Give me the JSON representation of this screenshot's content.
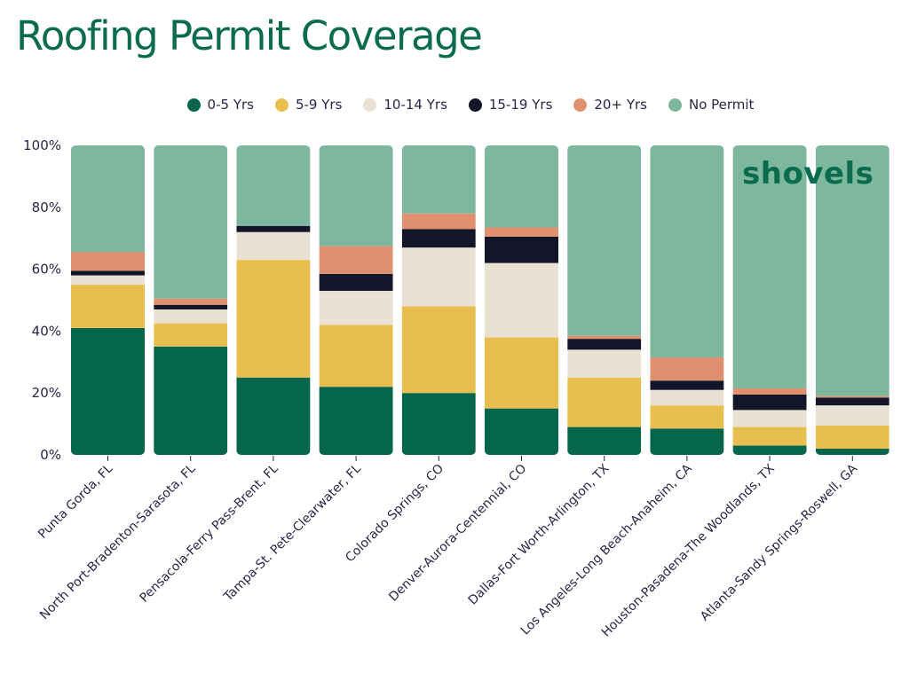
{
  "chart_data": {
    "type": "bar",
    "stacked": true,
    "title": "Roofing Permit Coverage",
    "xlabel": "",
    "ylabel": "",
    "ylim": [
      0,
      100
    ],
    "y_ticks": [
      "0%",
      "20%",
      "40%",
      "60%",
      "80%",
      "100%"
    ],
    "legend_position": "top",
    "categories": [
      "Punta Gorda, FL",
      "North Port-Bradenton-Sarasota, FL",
      "Pensacola-Ferry Pass-Brent, FL",
      "Tampa-St. Pete-Clearwater, FL",
      "Colorado Springs, CO",
      "Denver-Aurora-Centennial, CO",
      "Dallas-Fort Worth-Arlington, TX",
      "Los Angeles-Long Beach-Anaheim, CA",
      "Houston-Pasadena-The Woodlands, TX",
      "Atlanta-Sandy Springs-Roswell, GA"
    ],
    "series": [
      {
        "name": "0-5 Yrs",
        "color": "#05664b",
        "values": [
          41,
          35,
          25,
          22,
          20,
          15,
          9,
          8.5,
          3,
          2
        ]
      },
      {
        "name": "5-9 Yrs",
        "color": "#e8bf4f",
        "values": [
          14,
          7.5,
          38,
          20,
          28,
          23,
          16,
          7.5,
          6,
          7.5
        ]
      },
      {
        "name": "10-14 Yrs",
        "color": "#e9e2d3",
        "values": [
          3,
          4.5,
          9,
          11,
          19,
          24,
          9,
          5,
          5.5,
          6.5
        ]
      },
      {
        "name": "15-19 Yrs",
        "color": "#131629",
        "values": [
          1.5,
          1.5,
          2,
          5.5,
          6,
          8.5,
          3.5,
          3,
          5,
          2.5
        ]
      },
      {
        "name": "20+ Yrs",
        "color": "#e0906e",
        "values": [
          6,
          2,
          0,
          9,
          5,
          3,
          1,
          7.5,
          2,
          0.5
        ]
      },
      {
        "name": "No Permit",
        "color": "#7db89e",
        "values": [
          34.5,
          49.5,
          26,
          32.5,
          22,
          26.5,
          61.5,
          68.5,
          78.5,
          81
        ]
      }
    ]
  },
  "brand": {
    "logo_text": "shovels",
    "accent": "#0a6b4f"
  }
}
